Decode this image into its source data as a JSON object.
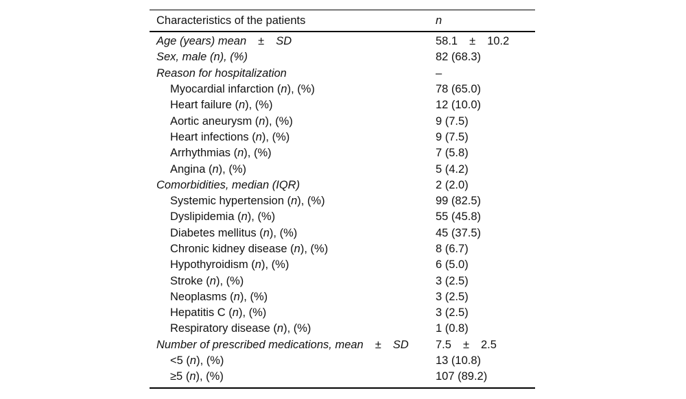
{
  "page": {
    "background": "#ffffff",
    "text_color": "#111111",
    "rule_color": "#000000"
  },
  "table": {
    "header": {
      "characteristics": "Characteristics of the patients",
      "n": "n"
    },
    "rows": [
      {
        "indent": 0,
        "label": [
          {
            "t": "Age (years) mean",
            "i": true
          },
          {
            "t": "±",
            "gap": true
          },
          {
            "t": "SD",
            "i": true,
            "gap": true
          }
        ],
        "value": [
          {
            "t": "58.1"
          },
          {
            "t": "±",
            "gap": true
          },
          {
            "t": "10.2",
            "gap": true
          }
        ]
      },
      {
        "indent": 0,
        "label": [
          {
            "t": "Sex, male (n), (%)",
            "i": true
          }
        ],
        "value": [
          {
            "t": "82 (68.3)"
          }
        ]
      },
      {
        "indent": 0,
        "label": [
          {
            "t": "Reason for hospitalization",
            "i": true
          }
        ],
        "value": [
          {
            "t": "–"
          }
        ]
      },
      {
        "indent": 1,
        "label": [
          {
            "t": "Myocardial infarction ("
          },
          {
            "t": "n",
            "i": true
          },
          {
            "t": "), (%)"
          }
        ],
        "value": [
          {
            "t": "78 (65.0)"
          }
        ]
      },
      {
        "indent": 1,
        "label": [
          {
            "t": "Heart failure ("
          },
          {
            "t": "n",
            "i": true
          },
          {
            "t": "), (%)"
          }
        ],
        "value": [
          {
            "t": "12 (10.0)"
          }
        ]
      },
      {
        "indent": 1,
        "label": [
          {
            "t": "Aortic aneurysm ("
          },
          {
            "t": "n",
            "i": true
          },
          {
            "t": "), (%)"
          }
        ],
        "value": [
          {
            "t": "9 (7.5)"
          }
        ]
      },
      {
        "indent": 1,
        "label": [
          {
            "t": "Heart infections ("
          },
          {
            "t": "n",
            "i": true
          },
          {
            "t": "), (%)"
          }
        ],
        "value": [
          {
            "t": "9 (7.5)"
          }
        ]
      },
      {
        "indent": 1,
        "label": [
          {
            "t": "Arrhythmias ("
          },
          {
            "t": "n",
            "i": true
          },
          {
            "t": "), (%)"
          }
        ],
        "value": [
          {
            "t": "7 (5.8)"
          }
        ]
      },
      {
        "indent": 1,
        "label": [
          {
            "t": "Angina ("
          },
          {
            "t": "n",
            "i": true
          },
          {
            "t": "), (%)"
          }
        ],
        "value": [
          {
            "t": "5 (4.2)"
          }
        ]
      },
      {
        "indent": 0,
        "label": [
          {
            "t": "Comorbidities, median (IQR)",
            "i": true
          }
        ],
        "value": [
          {
            "t": "2 (2.0)"
          }
        ]
      },
      {
        "indent": 1,
        "label": [
          {
            "t": "Systemic hypertension ("
          },
          {
            "t": "n",
            "i": true
          },
          {
            "t": "), (%)"
          }
        ],
        "value": [
          {
            "t": "99 (82.5)"
          }
        ]
      },
      {
        "indent": 1,
        "label": [
          {
            "t": "Dyslipidemia ("
          },
          {
            "t": "n",
            "i": true
          },
          {
            "t": "), (%)"
          }
        ],
        "value": [
          {
            "t": "55 (45.8)"
          }
        ]
      },
      {
        "indent": 1,
        "label": [
          {
            "t": "Diabetes mellitus ("
          },
          {
            "t": "n",
            "i": true
          },
          {
            "t": "), (%)"
          }
        ],
        "value": [
          {
            "t": "45 (37.5)"
          }
        ]
      },
      {
        "indent": 1,
        "label": [
          {
            "t": "Chronic kidney disease ("
          },
          {
            "t": "n",
            "i": true
          },
          {
            "t": "), (%)"
          }
        ],
        "value": [
          {
            "t": "8 (6.7)"
          }
        ]
      },
      {
        "indent": 1,
        "label": [
          {
            "t": "Hypothyroidism ("
          },
          {
            "t": "n",
            "i": true
          },
          {
            "t": "), (%)"
          }
        ],
        "value": [
          {
            "t": "6 (5.0)"
          }
        ]
      },
      {
        "indent": 1,
        "label": [
          {
            "t": "Stroke ("
          },
          {
            "t": "n",
            "i": true
          },
          {
            "t": "), (%)"
          }
        ],
        "value": [
          {
            "t": "3 (2.5)"
          }
        ]
      },
      {
        "indent": 1,
        "label": [
          {
            "t": "Neoplasms ("
          },
          {
            "t": "n",
            "i": true
          },
          {
            "t": "), (%)"
          }
        ],
        "value": [
          {
            "t": "3 (2.5)"
          }
        ]
      },
      {
        "indent": 1,
        "label": [
          {
            "t": "Hepatitis C ("
          },
          {
            "t": "n",
            "i": true
          },
          {
            "t": "), (%)"
          }
        ],
        "value": [
          {
            "t": "3 (2.5)"
          }
        ]
      },
      {
        "indent": 1,
        "label": [
          {
            "t": "Respiratory disease ("
          },
          {
            "t": "n",
            "i": true
          },
          {
            "t": "), (%)"
          }
        ],
        "value": [
          {
            "t": "1 (0.8)"
          }
        ]
      },
      {
        "indent": 0,
        "label": [
          {
            "t": "Number of prescribed medications, mean",
            "i": true
          },
          {
            "t": "±",
            "gap": true
          },
          {
            "t": "SD",
            "i": true,
            "gap": true
          }
        ],
        "value": [
          {
            "t": "7.5"
          },
          {
            "t": "±",
            "gap": true
          },
          {
            "t": "2.5",
            "gap": true
          }
        ]
      },
      {
        "indent": 1,
        "label": [
          {
            "t": "<5 ("
          },
          {
            "t": "n",
            "i": true
          },
          {
            "t": "), (%)"
          }
        ],
        "value": [
          {
            "t": "13 (10.8)"
          }
        ]
      },
      {
        "indent": 1,
        "label": [
          {
            "t": "≥5 ("
          },
          {
            "t": "n",
            "i": true
          },
          {
            "t": "), (%)"
          }
        ],
        "value": [
          {
            "t": "107 (89.2)"
          }
        ]
      }
    ]
  }
}
